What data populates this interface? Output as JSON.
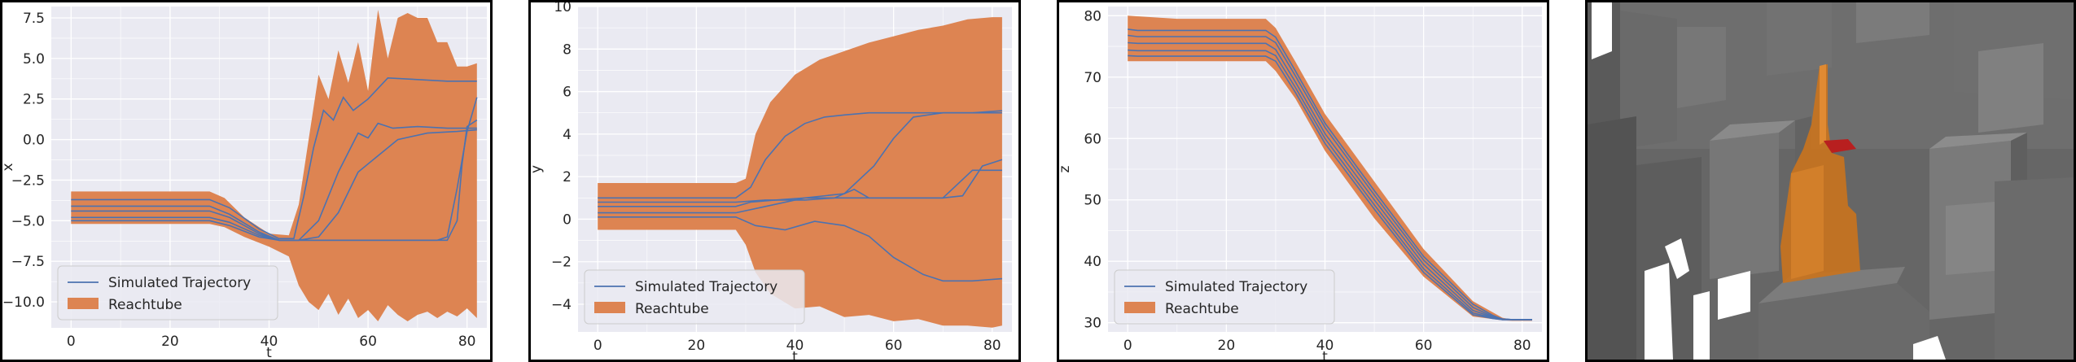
{
  "colors": {
    "plot_bg": "#eaeaf2",
    "grid": "#ffffff",
    "reachtube": "#dd8452",
    "trajectory": "#4c72b0",
    "text": "#262626"
  },
  "chart_data": [
    {
      "type": "line",
      "xlabel": "t",
      "ylabel": "x",
      "xlim": [
        -4,
        84
      ],
      "ylim": [
        -11.6,
        8.2
      ],
      "xticks": [
        0,
        20,
        40,
        60,
        80
      ],
      "yticks": [
        -10.0,
        -7.5,
        -5.0,
        -2.5,
        0.0,
        2.5,
        5.0,
        7.5
      ],
      "tick_labels_x": [
        "0",
        "20",
        "40",
        "60",
        "80"
      ],
      "tick_labels_y": [
        "−10.0",
        "−7.5",
        "−5.0",
        "−2.5",
        "0.0",
        "2.5",
        "5.0",
        "7.5"
      ],
      "legend": {
        "position": "lower-left",
        "entries": [
          "Simulated Trajectory",
          "Reachtube"
        ]
      },
      "grid": true,
      "reachtube": {
        "t": [
          0,
          10,
          20,
          28,
          31,
          35,
          40,
          44,
          46,
          48,
          50,
          52,
          54,
          56,
          58,
          60,
          62,
          64,
          66,
          68,
          70,
          72,
          74,
          76,
          78,
          80,
          82
        ],
        "upper": [
          -3.2,
          -3.2,
          -3.2,
          -3.2,
          -3.6,
          -4.8,
          -5.8,
          -5.9,
          -4.0,
          0.0,
          4.0,
          2.5,
          5.5,
          3.5,
          6.0,
          3.0,
          8.0,
          5.0,
          7.5,
          7.8,
          7.5,
          7.5,
          6.0,
          6.0,
          4.5,
          4.5,
          4.7
        ],
        "lower": [
          -5.2,
          -5.2,
          -5.2,
          -5.2,
          -5.4,
          -6.0,
          -6.6,
          -7.2,
          -9.0,
          -10.0,
          -10.5,
          -9.5,
          -10.8,
          -9.8,
          -11.0,
          -10.5,
          -11.2,
          -10.2,
          -10.8,
          -11.2,
          -10.8,
          -10.6,
          -11.0,
          -10.6,
          -10.9,
          -10.4,
          -11.0
        ]
      },
      "series": [
        {
          "t": [
            0,
            28,
            32,
            38,
            42,
            45,
            47,
            49,
            51,
            53,
            55,
            57,
            60,
            64,
            70,
            76,
            82
          ],
          "values": [
            -3.7,
            -3.7,
            -4.2,
            -5.5,
            -6.1,
            -6.1,
            -3.5,
            -0.5,
            1.8,
            1.2,
            2.6,
            1.8,
            2.5,
            3.8,
            3.7,
            3.6,
            3.6
          ]
        },
        {
          "t": [
            0,
            28,
            32,
            38,
            42,
            46,
            50,
            54,
            58,
            60,
            62,
            65,
            70,
            76,
            82
          ],
          "values": [
            -4.1,
            -4.1,
            -4.6,
            -5.7,
            -6.2,
            -6.2,
            -5.0,
            -2.0,
            0.4,
            0.1,
            1.0,
            0.7,
            0.8,
            0.7,
            0.7
          ]
        },
        {
          "t": [
            0,
            28,
            32,
            38,
            42,
            46,
            50,
            54,
            58,
            62,
            66,
            72,
            78,
            82
          ],
          "values": [
            -4.4,
            -4.4,
            -4.8,
            -5.8,
            -6.2,
            -6.2,
            -6.0,
            -4.5,
            -2.0,
            -1.0,
            0.0,
            0.4,
            0.5,
            0.6
          ]
        },
        {
          "t": [
            0,
            28,
            32,
            38,
            42,
            46,
            52,
            58,
            64,
            70,
            74,
            76,
            78,
            80,
            82
          ],
          "values": [
            -4.8,
            -4.8,
            -5.1,
            -5.9,
            -6.2,
            -6.2,
            -6.2,
            -6.2,
            -6.2,
            -6.2,
            -6.2,
            -6.0,
            -3.0,
            0.5,
            2.6
          ]
        },
        {
          "t": [
            0,
            28,
            32,
            38,
            42,
            46,
            52,
            58,
            64,
            70,
            76,
            78,
            79,
            80,
            82
          ],
          "values": [
            -5.0,
            -5.0,
            -5.3,
            -6.0,
            -6.2,
            -6.2,
            -6.2,
            -6.2,
            -6.2,
            -6.2,
            -6.2,
            -5.0,
            -1.5,
            0.8,
            1.2
          ]
        }
      ]
    },
    {
      "type": "line",
      "xlabel": "t",
      "ylabel": "y",
      "xlim": [
        -4,
        84
      ],
      "ylim": [
        -5.3,
        10.0
      ],
      "xticks": [
        0,
        20,
        40,
        60,
        80
      ],
      "yticks": [
        -4,
        -2,
        0,
        2,
        4,
        6,
        8,
        10
      ],
      "tick_labels_x": [
        "0",
        "20",
        "40",
        "60",
        "80"
      ],
      "tick_labels_y": [
        "−4",
        "−2",
        "0",
        "2",
        "4",
        "6",
        "8",
        "10"
      ],
      "legend": {
        "position": "lower-left",
        "entries": [
          "Simulated Trajectory",
          "Reachtube"
        ]
      },
      "grid": true,
      "reachtube": {
        "t": [
          0,
          10,
          20,
          28,
          30,
          32,
          35,
          40,
          45,
          50,
          55,
          60,
          65,
          70,
          75,
          80,
          82
        ],
        "upper": [
          1.7,
          1.7,
          1.7,
          1.7,
          1.9,
          4.0,
          5.5,
          6.8,
          7.5,
          7.9,
          8.3,
          8.6,
          8.9,
          9.1,
          9.4,
          9.5,
          9.5
        ],
        "lower": [
          -0.5,
          -0.5,
          -0.5,
          -0.5,
          -1.2,
          -2.5,
          -3.5,
          -4.2,
          -4.1,
          -4.6,
          -4.5,
          -4.8,
          -4.7,
          -5.0,
          -5.0,
          -5.1,
          -5.0
        ]
      },
      "series": [
        {
          "t": [
            0,
            28,
            31,
            34,
            38,
            42,
            46,
            50,
            55,
            60,
            70,
            82
          ],
          "values": [
            1.0,
            1.0,
            1.5,
            2.8,
            3.9,
            4.5,
            4.8,
            4.9,
            5.0,
            5.0,
            5.0,
            5.0
          ]
        },
        {
          "t": [
            0,
            28,
            31,
            36,
            42,
            50,
            56,
            60,
            64,
            70,
            76,
            82
          ],
          "values": [
            0.6,
            0.6,
            0.8,
            0.9,
            1.0,
            1.2,
            2.5,
            3.8,
            4.8,
            5.0,
            5.0,
            5.1
          ]
        },
        {
          "t": [
            0,
            28,
            34,
            42,
            48,
            52,
            55,
            60,
            70,
            76,
            82
          ],
          "values": [
            0.8,
            0.8,
            0.9,
            0.9,
            1.0,
            1.4,
            1.0,
            1.0,
            1.0,
            2.3,
            2.3
          ]
        },
        {
          "t": [
            0,
            28,
            34,
            42,
            50,
            60,
            66,
            70,
            74,
            78,
            82
          ],
          "values": [
            0.3,
            0.3,
            0.6,
            1.0,
            1.0,
            1.0,
            1.0,
            1.0,
            1.1,
            2.5,
            2.8
          ]
        },
        {
          "t": [
            0,
            28,
            32,
            38,
            44,
            50,
            55,
            60,
            66,
            70,
            76,
            82
          ],
          "values": [
            0.1,
            0.1,
            -0.3,
            -0.5,
            -0.1,
            -0.3,
            -0.8,
            -1.8,
            -2.6,
            -2.9,
            -2.9,
            -2.8
          ]
        }
      ]
    },
    {
      "type": "line",
      "xlabel": "t",
      "ylabel": "z",
      "xlim": [
        -4,
        84
      ],
      "ylim": [
        28.5,
        81.5
      ],
      "xticks": [
        0,
        20,
        40,
        60,
        80
      ],
      "yticks": [
        30,
        40,
        50,
        60,
        70,
        80
      ],
      "tick_labels_x": [
        "0",
        "20",
        "40",
        "60",
        "80"
      ],
      "tick_labels_y": [
        "30",
        "40",
        "50",
        "60",
        "70",
        "80"
      ],
      "legend": {
        "position": "lower-left",
        "entries": [
          "Simulated Trajectory",
          "Reachtube"
        ]
      },
      "grid": true,
      "reachtube": {
        "t": [
          0,
          10,
          20,
          28,
          30,
          34,
          40,
          50,
          60,
          70,
          76,
          78,
          80,
          82
        ],
        "upper": [
          80.0,
          79.5,
          79.5,
          79.5,
          78.0,
          72.5,
          64.0,
          53.0,
          42.0,
          33.5,
          30.8,
          30.5,
          30.5,
          30.5
        ],
        "lower": [
          72.6,
          72.6,
          72.6,
          72.6,
          71.0,
          66.5,
          58.0,
          47.0,
          37.5,
          31.0,
          30.4,
          30.3,
          30.3,
          30.3
        ]
      },
      "series": [
        {
          "t": [
            0,
            2,
            28,
            30,
            34,
            40,
            50,
            60,
            70,
            74,
            76,
            78,
            82
          ],
          "values": [
            77.8,
            77.6,
            77.6,
            76.5,
            71.0,
            62.5,
            51.5,
            40.8,
            33.0,
            31.2,
            30.6,
            30.5,
            30.5
          ]
        },
        {
          "t": [
            0,
            2,
            28,
            30,
            34,
            40,
            50,
            60,
            70,
            74,
            76,
            78,
            82
          ],
          "values": [
            76.8,
            76.6,
            76.6,
            75.6,
            70.2,
            61.8,
            50.8,
            40.2,
            32.5,
            31.0,
            30.6,
            30.5,
            30.5
          ]
        },
        {
          "t": [
            0,
            2,
            28,
            30,
            34,
            40,
            50,
            60,
            70,
            74,
            76,
            78,
            82
          ],
          "values": [
            75.6,
            75.5,
            75.5,
            74.5,
            69.2,
            60.8,
            50.0,
            39.5,
            32.0,
            30.9,
            30.6,
            30.5,
            30.5
          ]
        },
        {
          "t": [
            0,
            2,
            28,
            30,
            34,
            40,
            50,
            60,
            70,
            74,
            76,
            78,
            82
          ],
          "values": [
            74.4,
            74.3,
            74.3,
            73.5,
            68.3,
            60.0,
            49.2,
            38.8,
            31.6,
            30.8,
            30.5,
            30.5,
            30.5
          ]
        },
        {
          "t": [
            0,
            2,
            28,
            30,
            34,
            40,
            50,
            60,
            70,
            74,
            76,
            78,
            82
          ],
          "values": [
            73.5,
            73.4,
            73.4,
            72.6,
            67.5,
            59.2,
            48.5,
            38.2,
            31.3,
            30.7,
            30.5,
            30.5,
            30.5
          ]
        }
      ]
    }
  ]
}
